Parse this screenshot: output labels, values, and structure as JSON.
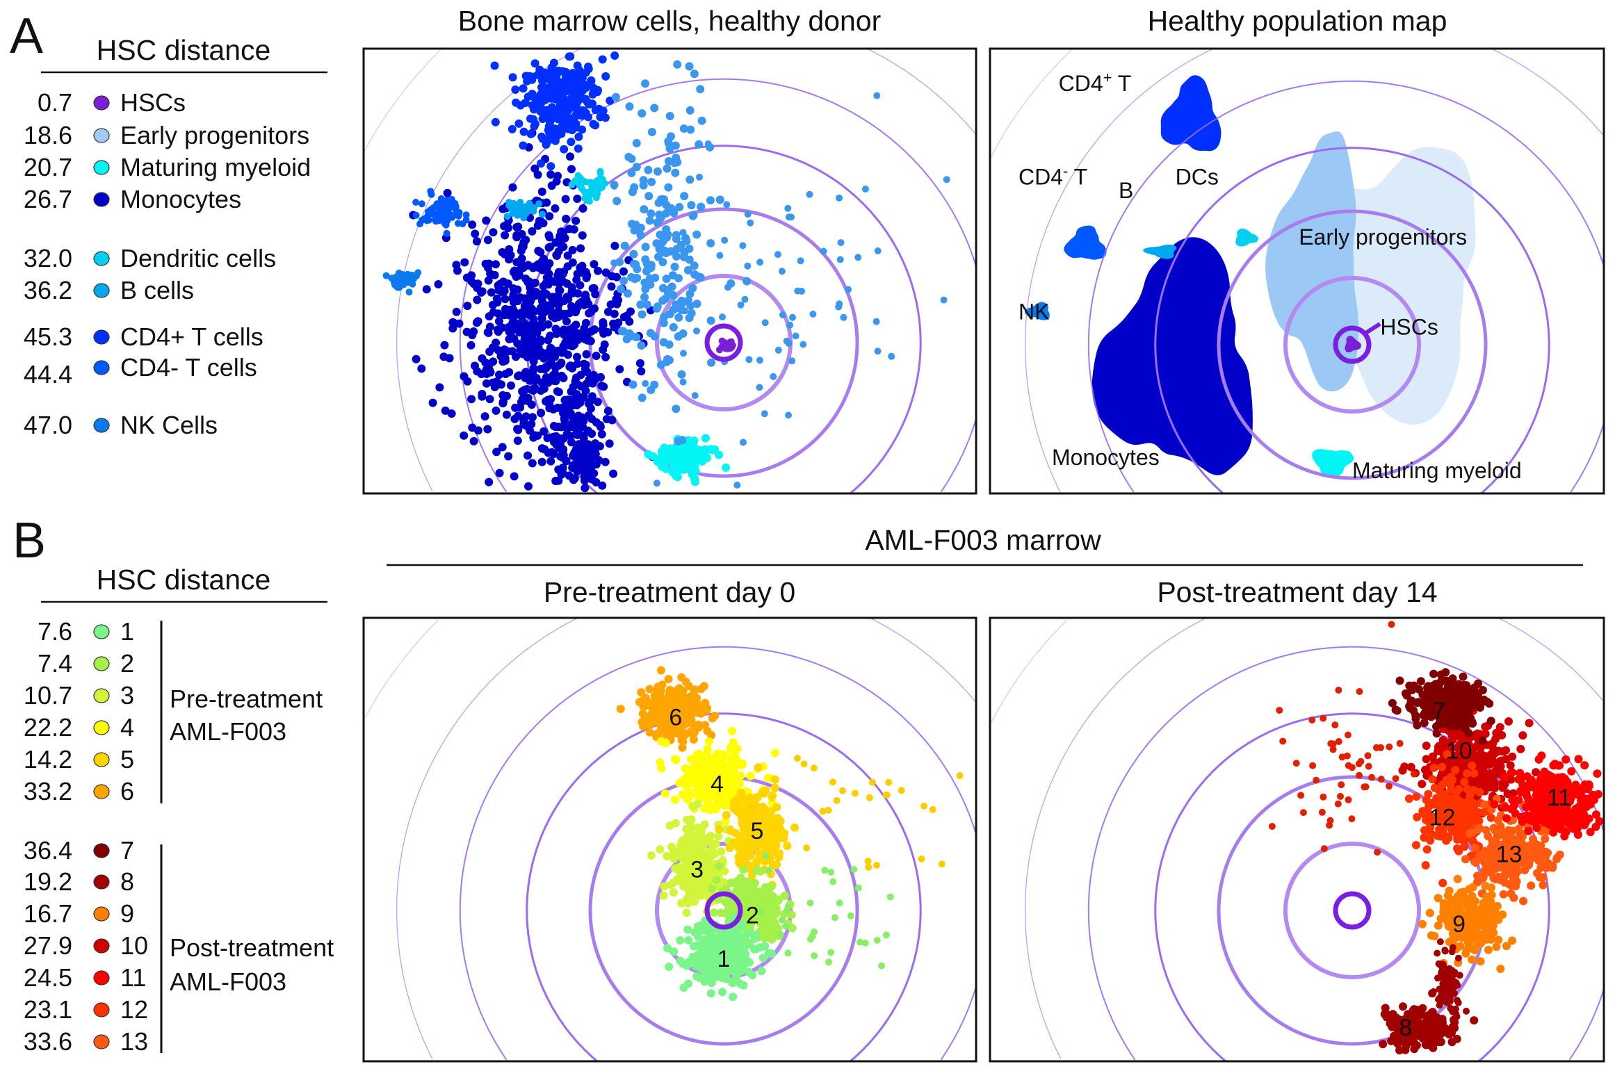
{
  "panel_a": {
    "letter": "A",
    "legend_title": "HSC distance",
    "legend": [
      {
        "value": "0.7",
        "label": "HSCs",
        "color": "#7a1fd6"
      },
      {
        "value": "18.6",
        "label": "Early progenitors",
        "color": "#9fcbf5"
      },
      {
        "value": "20.7",
        "label": "Maturing myeloid",
        "color": "#00f5f5"
      },
      {
        "value": "26.7",
        "label": "Monocytes",
        "color": "#0000c8"
      },
      {
        "value": "32.0",
        "label": "Dendritic cells",
        "color": "#00d0f0"
      },
      {
        "value": "36.2",
        "label": "B cells",
        "color": "#00a8f0"
      },
      {
        "value": "45.3",
        "label": "CD4+ T cells",
        "color": "#0030ff"
      },
      {
        "value": "44.4",
        "label": "CD4-  T cells",
        "color": "#0058ff"
      },
      {
        "value": "47.0",
        "label": "NK Cells",
        "color": "#0a7af0"
      }
    ]
  },
  "panel_b": {
    "letter": "B",
    "legend_title": "HSC distance",
    "header": "AML-F003 marrow",
    "legend": [
      {
        "value": "7.6",
        "label": "1",
        "color": "#7af58a"
      },
      {
        "value": "7.4",
        "label": "2",
        "color": "#a6f04a"
      },
      {
        "value": "10.7",
        "label": "3",
        "color": "#d2f53a"
      },
      {
        "value": "22.2",
        "label": "4",
        "color": "#ffff00"
      },
      {
        "value": "14.2",
        "label": "5",
        "color": "#ffd500"
      },
      {
        "value": "33.2",
        "label": "6",
        "color": "#ffa500"
      },
      {
        "value": "36.4",
        "label": "7",
        "color": "#800000"
      },
      {
        "value": "19.2",
        "label": "8",
        "color": "#a00000"
      },
      {
        "value": "16.7",
        "label": "9",
        "color": "#ff8000"
      },
      {
        "value": "27.9",
        "label": "10",
        "color": "#d00000"
      },
      {
        "value": "24.5",
        "label": "11",
        "color": "#ff0000"
      },
      {
        "value": "23.1",
        "label": "12",
        "color": "#ff3300"
      },
      {
        "value": "33.6",
        "label": "13",
        "color": "#ff5a10"
      }
    ],
    "groups": [
      {
        "line1": "Pre-treatment",
        "line2": "AML-F003"
      },
      {
        "line1": "Post-treatment",
        "line2": "AML-F003"
      }
    ]
  },
  "chart_data": [
    {
      "type": "scatter",
      "title": "Bone marrow cells, healthy donor",
      "ring_radii": [
        0.25,
        1,
        2,
        2.95,
        3.95,
        4.9,
        6.1
      ],
      "clusters": [
        {
          "name": "Monocytes",
          "color": "#0000c8",
          "center": [
            -2.8,
            0.2
          ],
          "spread": [
            0.75,
            1.25
          ],
          "n": 700
        },
        {
          "name": "Monocytes",
          "color": "#0000c8",
          "center": [
            -2.1,
            -1.6
          ],
          "spread": [
            0.3,
            0.5
          ],
          "n": 120
        },
        {
          "name": "CD4+ T cells",
          "color": "#0030ff",
          "center": [
            -2.5,
            3.65
          ],
          "spread": [
            0.4,
            0.45
          ],
          "n": 260
        },
        {
          "name": "CD4- T cells",
          "color": "#0058ff",
          "center": [
            -4.2,
            1.95
          ],
          "spread": [
            0.22,
            0.15
          ],
          "n": 80
        },
        {
          "name": "NK Cells",
          "color": "#0a7af0",
          "center": [
            -4.8,
            0.95
          ],
          "spread": [
            0.15,
            0.08
          ],
          "n": 40
        },
        {
          "name": "B cells",
          "color": "#00a8f0",
          "center": [
            -3.0,
            2.0
          ],
          "spread": [
            0.2,
            0.08
          ],
          "n": 40
        },
        {
          "name": "Dendritic cells",
          "color": "#00d0f0",
          "center": [
            -2.0,
            2.35
          ],
          "spread": [
            0.18,
            0.12
          ],
          "n": 45
        },
        {
          "name": "Maturing myeloid",
          "color": "#00f5f5",
          "center": [
            -0.55,
            -1.7
          ],
          "spread": [
            0.25,
            0.15
          ],
          "n": 120
        },
        {
          "name": "Early progenitors",
          "color": "#3a96ee",
          "center": [
            -0.9,
            1.4
          ],
          "spread": [
            0.45,
            1.4
          ],
          "n": 200
        },
        {
          "name": "Early progenitors",
          "color": "#3a96ee",
          "center": [
            0.5,
            0.7
          ],
          "spread": [
            1.3,
            1.5
          ],
          "n": 70
        },
        {
          "name": "HSCs",
          "color": "#7a1fd6",
          "center": [
            0.05,
            0.0
          ],
          "spread": [
            0.08,
            0.08
          ],
          "n": 15
        }
      ]
    },
    {
      "type": "area",
      "title": "Healthy population map",
      "ring_radii": [
        0.25,
        1,
        2,
        2.95,
        3.95,
        4.9,
        6.1
      ],
      "regions": [
        {
          "name": "Early progenitors outer",
          "color": "#dcebfa",
          "center": [
            0.6,
            1.0
          ],
          "size": [
            1.6,
            2.3
          ]
        },
        {
          "name": "Early progenitors inner",
          "color": "#9cc8f5",
          "center": [
            -0.5,
            1.2
          ],
          "size": [
            0.8,
            2.2
          ]
        },
        {
          "name": "Monocytes",
          "color": "#0000c8",
          "center": [
            -2.6,
            -0.3
          ],
          "size": [
            1.4,
            2.0
          ]
        },
        {
          "name": "CD4+ T",
          "color": "#0030ff",
          "center": [
            -2.4,
            3.4
          ],
          "size": [
            0.5,
            0.65
          ]
        },
        {
          "name": "CD4- T",
          "color": "#0058ff",
          "center": [
            -4.0,
            1.5
          ],
          "size": [
            0.35,
            0.3
          ]
        },
        {
          "name": "NK",
          "color": "#0a7af0",
          "center": [
            -4.7,
            0.5
          ],
          "size": [
            0.22,
            0.15
          ]
        },
        {
          "name": "B",
          "color": "#00a8f0",
          "center": [
            -2.85,
            1.4
          ],
          "size": [
            0.28,
            0.12
          ]
        },
        {
          "name": "DCs",
          "color": "#00d0f0",
          "center": [
            -1.6,
            1.6
          ],
          "size": [
            0.2,
            0.15
          ]
        },
        {
          "name": "Maturing myeloid",
          "color": "#00f5f5",
          "center": [
            -0.3,
            -1.75
          ],
          "size": [
            0.35,
            0.25
          ]
        },
        {
          "name": "HSCs",
          "color": "#7a1fd6",
          "center": [
            0.0,
            0.0
          ],
          "size": [
            0.14,
            0.14
          ]
        }
      ],
      "labels": [
        {
          "text": "CD4",
          "sup": "+",
          "rest": " T",
          "at": [
            -4.4,
            3.8
          ]
        },
        {
          "text": "CD4",
          "sup": "-",
          "rest": " T",
          "at": [
            -5.0,
            2.4
          ]
        },
        {
          "text": "B",
          "sup": "",
          "rest": "",
          "at": [
            -3.5,
            2.2
          ]
        },
        {
          "text": "DCs",
          "sup": "",
          "rest": "",
          "at": [
            -2.65,
            2.4
          ]
        },
        {
          "text": "Early progenitors",
          "sup": "",
          "rest": "",
          "at": [
            -0.8,
            1.5
          ]
        },
        {
          "text": "NK",
          "sup": "",
          "rest": "",
          "at": [
            -5.0,
            0.38
          ]
        },
        {
          "text": "HSCs",
          "sup": "",
          "rest": "",
          "at": [
            0.42,
            0.15
          ]
        },
        {
          "text": "Monocytes",
          "sup": "",
          "rest": "",
          "at": [
            -4.5,
            -1.8
          ]
        },
        {
          "text": "Maturing myeloid",
          "sup": "",
          "rest": "",
          "at": [
            0.0,
            -2.0
          ]
        }
      ]
    },
    {
      "type": "scatter",
      "title": "Pre-treatment day 0",
      "ring_radii": [
        0.25,
        1,
        2,
        2.95,
        3.95,
        4.9,
        6.1
      ],
      "clusters": [
        {
          "name": "6",
          "color": "#ffa500",
          "center": [
            -0.75,
            2.95
          ],
          "spread": [
            0.3,
            0.25
          ],
          "n": 260
        },
        {
          "name": "4",
          "color": "#ffff00",
          "center": [
            -0.1,
            1.95
          ],
          "spread": [
            0.35,
            0.3
          ],
          "n": 260
        },
        {
          "name": "3",
          "color": "#d2f53a",
          "center": [
            -0.4,
            0.7
          ],
          "spread": [
            0.25,
            0.4
          ],
          "n": 220
        },
        {
          "name": "5",
          "color": "#ffd500",
          "center": [
            0.5,
            1.2
          ],
          "spread": [
            0.25,
            0.4
          ],
          "n": 220
        },
        {
          "name": "2",
          "color": "#a6f04a",
          "center": [
            0.4,
            0.05
          ],
          "spread": [
            0.3,
            0.3
          ],
          "n": 220
        },
        {
          "name": "1",
          "color": "#7af58a",
          "center": [
            -0.05,
            -0.65
          ],
          "spread": [
            0.35,
            0.3
          ],
          "n": 240
        },
        {
          "name": "scattered",
          "color": "#ffcc00",
          "center": [
            2.2,
            1.5
          ],
          "spread": [
            0.9,
            0.6
          ],
          "n": 25
        },
        {
          "name": "scattered",
          "color": "#88ee66",
          "center": [
            1.6,
            -0.2
          ],
          "spread": [
            0.6,
            0.5
          ],
          "n": 30
        }
      ],
      "labels": [
        {
          "text": "6",
          "at": [
            -0.72,
            2.9
          ]
        },
        {
          "text": "4",
          "at": [
            -0.1,
            1.9
          ]
        },
        {
          "text": "5",
          "at": [
            0.5,
            1.2
          ]
        },
        {
          "text": "3",
          "at": [
            -0.4,
            0.62
          ]
        },
        {
          "text": "2",
          "at": [
            0.43,
            -0.07
          ]
        },
        {
          "text": "1",
          "at": [
            0.0,
            -0.72
          ]
        }
      ]
    },
    {
      "type": "scatter",
      "title": "Post-treatment day 14",
      "ring_radii": [
        0.25,
        1,
        2,
        2.95,
        3.95,
        4.9,
        6.1
      ],
      "clusters": [
        {
          "name": "10",
          "color": "#d00000",
          "center": [
            1.75,
            2.1
          ],
          "spread": [
            0.4,
            0.45
          ],
          "n": 320
        },
        {
          "name": "12",
          "color": "#ff3300",
          "center": [
            1.5,
            1.45
          ],
          "spread": [
            0.3,
            0.4
          ],
          "n": 220
        },
        {
          "name": "13",
          "color": "#ff5a10",
          "center": [
            2.4,
            0.8
          ],
          "spread": [
            0.35,
            0.35
          ],
          "n": 220
        },
        {
          "name": "11",
          "color": "#ff0000",
          "center": [
            3.05,
            1.65
          ],
          "spread": [
            0.4,
            0.3
          ],
          "n": 280
        },
        {
          "name": "7",
          "color": "#800000",
          "center": [
            1.4,
            3.1
          ],
          "spread": [
            0.35,
            0.22
          ],
          "n": 280
        },
        {
          "name": "9",
          "color": "#ff8000",
          "center": [
            1.75,
            -0.15
          ],
          "spread": [
            0.3,
            0.28
          ],
          "n": 220
        },
        {
          "name": "8",
          "color": "#a00000",
          "center": [
            1.0,
            -1.75
          ],
          "spread": [
            0.3,
            0.18
          ],
          "n": 200
        },
        {
          "name": "8",
          "color": "#a00000",
          "center": [
            1.45,
            -1.1
          ],
          "spread": [
            0.12,
            0.3
          ],
          "n": 90
        },
        {
          "name": "scattered",
          "color": "#e02000",
          "center": [
            -0.1,
            2.1
          ],
          "spread": [
            0.7,
            0.7
          ],
          "n": 50
        }
      ],
      "labels": [
        {
          "text": "7",
          "at": [
            1.3,
            3.0
          ]
        },
        {
          "text": "10",
          "at": [
            1.6,
            2.4
          ]
        },
        {
          "text": "11",
          "at": [
            3.1,
            1.7
          ]
        },
        {
          "text": "12",
          "at": [
            1.35,
            1.4
          ]
        },
        {
          "text": "13",
          "at": [
            2.35,
            0.85
          ]
        },
        {
          "text": "9",
          "at": [
            1.6,
            -0.2
          ]
        },
        {
          "text": "8",
          "at": [
            0.8,
            -1.75
          ]
        }
      ]
    }
  ]
}
